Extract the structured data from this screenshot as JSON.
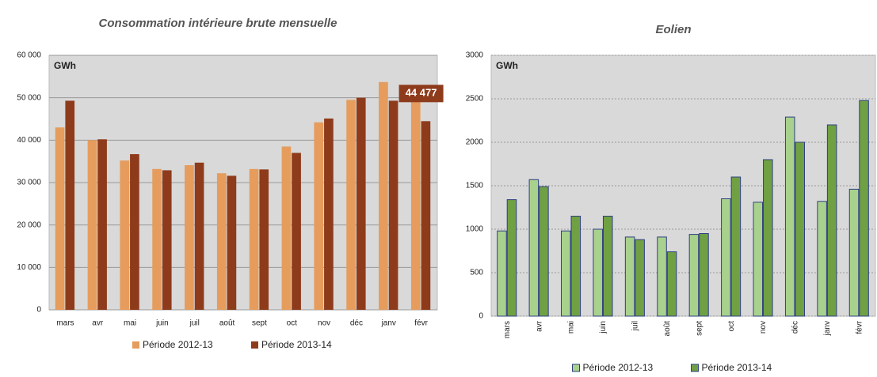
{
  "chart_data": [
    {
      "type": "bar",
      "title": "Consommation intérieure brute mensuelle",
      "unit_label": "GWh",
      "categories": [
        "mars",
        "avr",
        "mai",
        "juin",
        "juil",
        "août",
        "sept",
        "oct",
        "nov",
        "déc",
        "janv",
        "févr"
      ],
      "series": [
        {
          "name": "Période 2012-13",
          "color": "#e59c5c",
          "values": [
            43000,
            40000,
            35200,
            33200,
            34100,
            32200,
            33200,
            38500,
            44200,
            49500,
            53700,
            50000
          ]
        },
        {
          "name": "Période 2013-14",
          "color": "#8e3b1b",
          "values": [
            49300,
            40200,
            36700,
            32900,
            34700,
            31600,
            33100,
            37000,
            45100,
            50000,
            49300,
            44477
          ],
          "value_labels": [
            null,
            null,
            null,
            null,
            null,
            null,
            null,
            null,
            null,
            null,
            null,
            "44 477"
          ]
        }
      ],
      "ylim": [
        0,
        60000
      ],
      "yticks": [
        0,
        {
          "value": 10000,
          "label": "10 000"
        },
        {
          "value": 20000,
          "label": "20 000"
        },
        {
          "value": 30000,
          "label": "30 000"
        },
        {
          "value": 40000,
          "label": "40 000"
        },
        {
          "value": 50000,
          "label": "50 000"
        },
        {
          "value": 60000,
          "label": "60 000"
        }
      ],
      "grid": true,
      "legend": "bottom"
    },
    {
      "type": "bar",
      "title": "Eolien",
      "unit_label": "GWh",
      "categories": [
        "mars",
        "avr",
        "mai",
        "juin",
        "juil",
        "août",
        "sept",
        "oct",
        "nov",
        "déc",
        "janv",
        "févr"
      ],
      "series": [
        {
          "name": "Période 2012-13",
          "color": "#a9d18e",
          "values": [
            980,
            1570,
            980,
            1000,
            910,
            910,
            940,
            1350,
            1310,
            2290,
            1320,
            1460
          ]
        },
        {
          "name": "Période 2013-14",
          "color": "#70a044",
          "values": [
            1340,
            1490,
            1150,
            1150,
            880,
            740,
            950,
            1600,
            1800,
            2000,
            2200,
            2480
          ]
        }
      ],
      "ylim": [
        0,
        3000
      ],
      "yticks": [
        0,
        500,
        1000,
        1500,
        2000,
        2500,
        3000
      ],
      "grid": true,
      "legend": "bottom"
    }
  ]
}
